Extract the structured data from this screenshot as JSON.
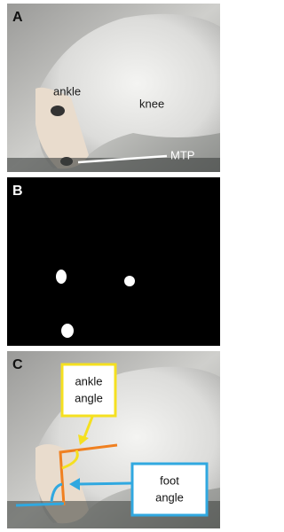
{
  "panels": [
    {
      "label": "A",
      "annotations": [
        "ankle",
        "knee",
        "MTP"
      ]
    },
    {
      "label": "B"
    },
    {
      "label": "C",
      "callouts": [
        {
          "lines": [
            "ankle",
            "angle"
          ]
        },
        {
          "lines": [
            "foot",
            "angle"
          ]
        }
      ]
    }
  ]
}
